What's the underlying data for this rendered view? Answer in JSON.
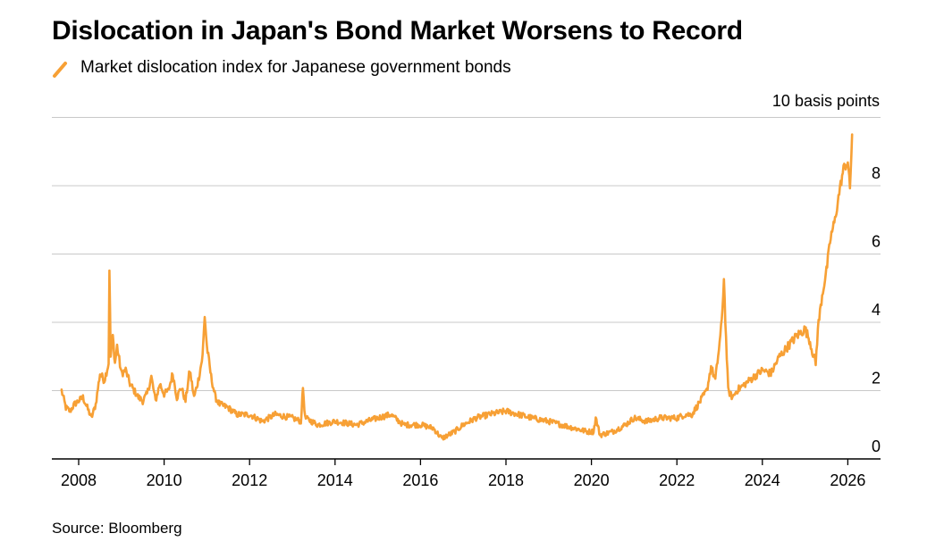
{
  "title": "Dislocation in Japan's Bond Market Worsens to Record",
  "legend": {
    "label": "Market dislocation index for Japanese government bonds",
    "color": "#f7a035"
  },
  "source": "Source: Bloomberg",
  "chart_data": {
    "type": "line",
    "title": "Dislocation in Japan's Bond Market Worsens to Record",
    "ylabel": "10 basis points",
    "xlabel": "",
    "xlim": [
      2007.5,
      2026.8
    ],
    "ylim": [
      0,
      10
    ],
    "y_ticks": [
      0,
      2,
      4,
      6,
      8
    ],
    "x_ticks": [
      2008,
      2010,
      2012,
      2014,
      2016,
      2018,
      2020,
      2022,
      2024,
      2026
    ],
    "grid": "horizontal",
    "legend_position": "top-left",
    "series": [
      {
        "name": "Market dislocation index for Japanese government bonds",
        "color": "#f7a035",
        "x": [
          2007.6,
          2007.7,
          2007.8,
          2007.9,
          2008.0,
          2008.1,
          2008.2,
          2008.3,
          2008.4,
          2008.5,
          2008.6,
          2008.7,
          2008.72,
          2008.75,
          2008.8,
          2008.85,
          2008.9,
          2009.0,
          2009.1,
          2009.2,
          2009.3,
          2009.4,
          2009.5,
          2009.6,
          2009.7,
          2009.8,
          2009.9,
          2010.0,
          2010.1,
          2010.2,
          2010.3,
          2010.4,
          2010.5,
          2010.6,
          2010.7,
          2010.8,
          2010.9,
          2010.95,
          2011.0,
          2011.1,
          2011.2,
          2011.3,
          2011.5,
          2011.7,
          2012.0,
          2012.3,
          2012.6,
          2013.0,
          2013.2,
          2013.25,
          2013.3,
          2013.6,
          2014.0,
          2014.5,
          2015.0,
          2015.3,
          2015.6,
          2016.0,
          2016.3,
          2016.5,
          2016.8,
          2017.0,
          2017.3,
          2017.6,
          2018.0,
          2018.3,
          2018.6,
          2019.0,
          2019.3,
          2019.6,
          2019.9,
          2020.05,
          2020.1,
          2020.2,
          2020.5,
          2020.8,
          2021.0,
          2021.3,
          2021.6,
          2022.0,
          2022.2,
          2022.35,
          2022.5,
          2022.7,
          2022.8,
          2022.9,
          2023.0,
          2023.05,
          2023.1,
          2023.15,
          2023.2,
          2023.3,
          2023.4,
          2023.6,
          2023.8,
          2024.0,
          2024.2,
          2024.4,
          2024.6,
          2024.8,
          2025.0,
          2025.1,
          2025.2,
          2025.25,
          2025.3,
          2025.4,
          2025.5,
          2025.6,
          2025.7,
          2025.8,
          2025.9,
          2026.0,
          2026.05,
          2026.1
        ],
        "values": [
          2.0,
          1.5,
          1.4,
          1.6,
          1.7,
          1.8,
          1.5,
          1.2,
          1.6,
          2.5,
          2.3,
          2.8,
          5.6,
          3.0,
          3.6,
          2.8,
          3.3,
          2.5,
          2.6,
          2.2,
          2.0,
          1.8,
          1.7,
          1.9,
          2.4,
          1.7,
          2.2,
          1.9,
          2.0,
          2.5,
          1.8,
          2.1,
          1.7,
          2.6,
          1.8,
          2.3,
          3.0,
          4.2,
          3.3,
          2.4,
          1.8,
          1.6,
          1.5,
          1.3,
          1.3,
          1.1,
          1.3,
          1.2,
          1.1,
          2.1,
          1.2,
          1.0,
          1.1,
          1.0,
          1.2,
          1.3,
          1.0,
          1.0,
          0.9,
          0.6,
          0.8,
          1.0,
          1.2,
          1.3,
          1.4,
          1.3,
          1.2,
          1.1,
          1.0,
          0.9,
          0.8,
          0.8,
          1.2,
          0.7,
          0.8,
          1.0,
          1.2,
          1.1,
          1.2,
          1.2,
          1.3,
          1.3,
          1.6,
          2.0,
          2.7,
          2.3,
          3.4,
          4.0,
          5.3,
          3.5,
          2.0,
          1.8,
          2.0,
          2.2,
          2.4,
          2.6,
          2.5,
          3.0,
          3.3,
          3.6,
          3.8,
          3.5,
          3.0,
          2.8,
          3.8,
          4.8,
          5.5,
          6.5,
          7.0,
          7.8,
          8.5,
          8.7,
          7.9,
          9.5
        ]
      }
    ]
  }
}
